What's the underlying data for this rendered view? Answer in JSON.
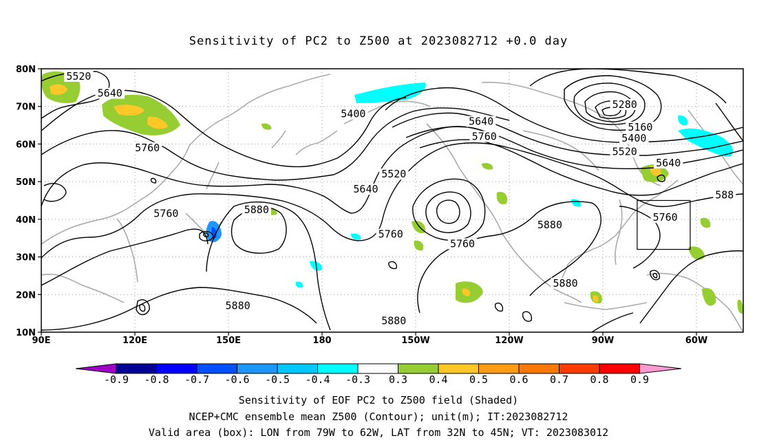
{
  "title": "Sensitivity of PC2 to Z500 at 2023082712 +0.0 day",
  "lat_labels": [
    "80N",
    "70N",
    "60N",
    "50N",
    "40N",
    "30N",
    "20N",
    "10N"
  ],
  "lon_labels": [
    "90E",
    "120E",
    "150E",
    "180",
    "150W",
    "120W",
    "90W",
    "60W"
  ],
  "contours": [
    {
      "label": "5520",
      "lon": 102,
      "lat": 78
    },
    {
      "label": "5640",
      "lon": 112,
      "lat": 73.5
    },
    {
      "label": "5760",
      "lon": 124,
      "lat": 59
    },
    {
      "label": "5760",
      "lon": 130,
      "lat": 41.5
    },
    {
      "label": "5880",
      "lon": 159,
      "lat": 42.5
    },
    {
      "label": "5880",
      "lon": 153,
      "lat": 17
    },
    {
      "label": "5400",
      "lon": 190,
      "lat": 68
    },
    {
      "label": "5520",
      "lon": 203,
      "lat": 52
    },
    {
      "label": "5640",
      "lon": 194,
      "lat": 48
    },
    {
      "label": "5760",
      "lon": 202,
      "lat": 36
    },
    {
      "label": "5880",
      "lon": 203,
      "lat": 13
    },
    {
      "label": "5640",
      "lon": 231,
      "lat": 66
    },
    {
      "label": "5760",
      "lon": 232,
      "lat": 62
    },
    {
      "label": "5760",
      "lon": 225,
      "lat": 33.5
    },
    {
      "label": "5880",
      "lon": 253,
      "lat": 38.5
    },
    {
      "label": "5880",
      "lon": 258,
      "lat": 23
    },
    {
      "label": "5280",
      "lon": 277,
      "lat": 70.5
    },
    {
      "label": "5160",
      "lon": 282,
      "lat": 64.5
    },
    {
      "label": "5400",
      "lon": 280,
      "lat": 61.5
    },
    {
      "label": "5520",
      "lon": 277,
      "lat": 58
    },
    {
      "label": "5640",
      "lon": 291,
      "lat": 55
    },
    {
      "label": "5760",
      "lon": 290,
      "lat": 40.5
    },
    {
      "label": "588",
      "lon": 309,
      "lat": 46.5
    }
  ],
  "colorbar": {
    "labels": [
      "-0.9",
      "-0.8",
      "-0.7",
      "-0.6",
      "-0.5",
      "-0.4",
      "-0.3",
      "0.3",
      "0.4",
      "0.5",
      "0.6",
      "0.7",
      "0.8",
      "0.9"
    ],
    "colors": [
      "#a000c8",
      "#000096",
      "#0000ff",
      "#0050ff",
      "#1e96ff",
      "#00c8ff",
      "#00ffff",
      "#ffffff",
      "#96cd32",
      "#ffc828",
      "#ff9b14",
      "#ff7800",
      "#ff3c00",
      "#ff0000",
      "#ff9bd2"
    ]
  },
  "valid_box": {
    "lon_min": 281,
    "lon_max": 298,
    "lat_min": 32,
    "lat_max": 45
  },
  "caption": [
    "Sensitivity of EOF PC2 to Z500 field (Shaded)",
    "NCEP+CMC ensemble mean Z500 (Contour); unit(m); IT:2023082712",
    "Valid area (box): LON from 79W to 62W, LAT from 32N to 45N; VT: 2023083012"
  ]
}
